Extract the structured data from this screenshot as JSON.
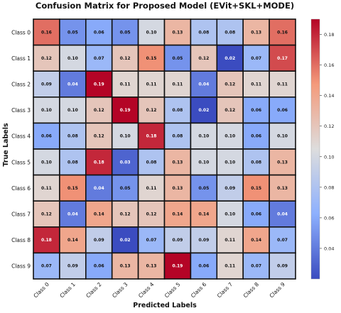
{
  "chart_data": {
    "type": "heatmap",
    "title": "Confusion Matrix for Proposed Model (EVit+SKL+MODE)",
    "xlabel": "Predicted Labels",
    "ylabel": "True Labels",
    "x_categories": [
      "Class 0",
      "Class 1",
      "Class 2",
      "Class 3",
      "Class 4",
      "Class 5",
      "Class 6",
      "Class 7",
      "Class 8",
      "Class 9"
    ],
    "y_categories": [
      "Class 0",
      "Class 1",
      "Class 2",
      "Class 3",
      "Class 4",
      "Class 5",
      "Class 6",
      "Class 7",
      "Class 8",
      "Class 9"
    ],
    "values": [
      [
        0.16,
        0.05,
        0.06,
        0.05,
        0.1,
        0.13,
        0.08,
        0.08,
        0.13,
        0.16
      ],
      [
        0.12,
        0.1,
        0.07,
        0.12,
        0.15,
        0.05,
        0.12,
        0.02,
        0.07,
        0.17
      ],
      [
        0.09,
        0.04,
        0.19,
        0.11,
        0.11,
        0.11,
        0.04,
        0.12,
        0.11,
        0.11
      ],
      [
        0.1,
        0.1,
        0.12,
        0.19,
        0.12,
        0.08,
        0.02,
        0.12,
        0.06,
        0.06
      ],
      [
        0.06,
        0.08,
        0.12,
        0.1,
        0.18,
        0.08,
        0.1,
        0.1,
        0.06,
        0.1
      ],
      [
        0.1,
        0.08,
        0.18,
        0.03,
        0.08,
        0.13,
        0.1,
        0.1,
        0.08,
        0.13
      ],
      [
        0.11,
        0.15,
        0.04,
        0.05,
        0.11,
        0.13,
        0.05,
        0.09,
        0.15,
        0.13
      ],
      [
        0.12,
        0.04,
        0.14,
        0.12,
        0.12,
        0.14,
        0.14,
        0.1,
        0.06,
        0.04
      ],
      [
        0.18,
        0.14,
        0.09,
        0.02,
        0.07,
        0.09,
        0.09,
        0.11,
        0.14,
        0.07
      ],
      [
        0.07,
        0.09,
        0.06,
        0.13,
        0.13,
        0.19,
        0.06,
        0.11,
        0.07,
        0.09
      ]
    ],
    "colormap": "coolwarm",
    "vmin": 0.02,
    "vmax": 0.19,
    "colorbar_ticks": [
      0.04,
      0.06,
      0.08,
      0.1,
      0.12,
      0.14,
      0.16,
      0.18
    ],
    "colorbar_tick_labels": [
      "0.04",
      "0.06",
      "0.08",
      "0.10",
      "0.12",
      "0.14",
      "0.16",
      "0.18"
    ],
    "cell_border_color": "#111111",
    "grid": false
  }
}
